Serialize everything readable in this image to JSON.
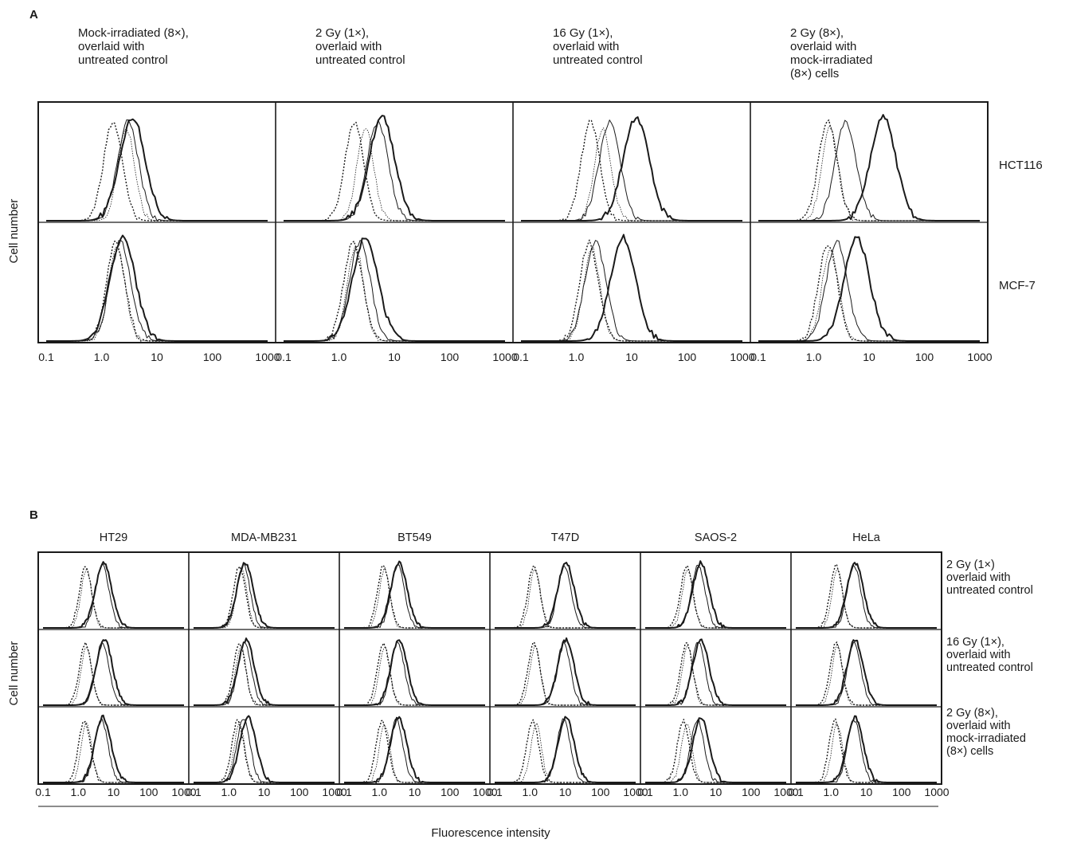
{
  "chart_data": {
    "type": "histogram",
    "scale_x": "log",
    "xlim": [
      0.1,
      1000
    ],
    "x_ticks": [
      "0.1",
      "1.0",
      "10",
      "100",
      "1000"
    ],
    "panels": [
      {
        "label": "A",
        "ylabel": "Cell number",
        "xlabel": "",
        "columns": [
          [
            "Mock-irradiated (8×),",
            "overlaid with",
            "untreated control"
          ],
          [
            "2 Gy (1×),",
            "overlaid with",
            "untreated control"
          ],
          [
            "16 Gy (1×),",
            "overlaid with",
            "untreated control"
          ],
          [
            "2 Gy (8×),",
            "overlaid with",
            "mock-irradiated",
            "(8×) cells"
          ]
        ],
        "rows": [
          "HCT116",
          "MCF-7"
        ],
        "peaks": [
          [
            [
              1.6,
              2.8,
              3.0,
              3.6
            ],
            [
              1.9,
              3.0,
              5.0,
              6.0
            ],
            [
              1.8,
              3.0,
              4.0,
              12.0
            ],
            [
              1.8,
              2.0,
              3.8,
              18.0
            ]
          ],
          [
            [
              1.8,
              1.9,
              2.2,
              2.4
            ],
            [
              1.8,
              2.0,
              2.4,
              3.0
            ],
            [
              1.7,
              1.9,
              2.2,
              7.0
            ],
            [
              1.8,
              2.0,
              2.6,
              6.0
            ]
          ]
        ]
      },
      {
        "label": "B",
        "ylabel": "Cell number",
        "xlabel": "Fluorescence intensity",
        "columns": [
          "HT29",
          "MDA-MB231",
          "BT549",
          "T47D",
          "SAOS-2",
          "HeLa"
        ],
        "rows": [
          [
            "2 Gy (1×)",
            "overlaid with",
            "untreated control"
          ],
          [
            "16 Gy (1×),",
            "overlaid with",
            "untreated control"
          ],
          [
            "2 Gy (8×),",
            "overlaid with",
            "mock-irradiated",
            "(8×) cells"
          ]
        ],
        "peaks": [
          [
            [
              1.6,
              1.7,
              4.8,
              5.2
            ],
            [
              2.0,
              2.3,
              2.6,
              2.9
            ],
            [
              1.3,
              1.4,
              3.3,
              3.6
            ],
            [
              1.3,
              1.4,
              9.5,
              10.5
            ],
            [
              1.5,
              1.6,
              3.2,
              3.8
            ],
            [
              1.4,
              1.5,
              4.5,
              4.8
            ]
          ],
          [
            [
              1.6,
              1.7,
              4.8,
              5.5
            ],
            [
              2.0,
              2.2,
              2.8,
              3.1
            ],
            [
              1.3,
              1.4,
              3.3,
              3.6
            ],
            [
              1.3,
              1.4,
              9.0,
              10.5
            ],
            [
              1.5,
              1.6,
              3.2,
              3.8
            ],
            [
              1.4,
              1.5,
              4.5,
              4.8
            ]
          ],
          [
            [
              1.5,
              1.7,
              4.5,
              5.0
            ],
            [
              1.8,
              2.0,
              2.6,
              3.5
            ],
            [
              1.2,
              1.4,
              3.0,
              3.5
            ],
            [
              1.2,
              1.5,
              9.0,
              10.5
            ],
            [
              1.2,
              1.5,
              3.0,
              3.8
            ],
            [
              1.3,
              1.5,
              4.5,
              4.8
            ]
          ]
        ]
      }
    ]
  }
}
